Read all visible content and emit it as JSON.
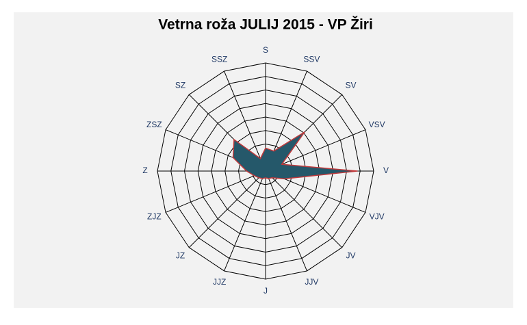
{
  "chart_data": {
    "type": "radar",
    "title": "Vetrna roža JULIJ 2015 - VP Žiri",
    "categories": [
      "S",
      "SSV",
      "SV",
      "VSV",
      "V",
      "VJV",
      "JV",
      "JJV",
      "J",
      "JJZ",
      "JZ",
      "ZJZ",
      "Z",
      "ZSZ",
      "SZ",
      "SSZ"
    ],
    "series": [
      {
        "color": "#25586a",
        "edge": "#c0393b",
        "values": [
          1.7,
          1.6,
          4.1,
          1.3,
          6.8,
          1.5,
          0.7,
          0.6,
          0.5,
          0.6,
          0.7,
          0.9,
          1.4,
          2.6,
          3.3,
          1.0
        ]
      }
    ],
    "ylim": [
      0,
      8
    ],
    "yticks": [
      1,
      2,
      3,
      4,
      5,
      6,
      7,
      8
    ],
    "grid": true
  }
}
